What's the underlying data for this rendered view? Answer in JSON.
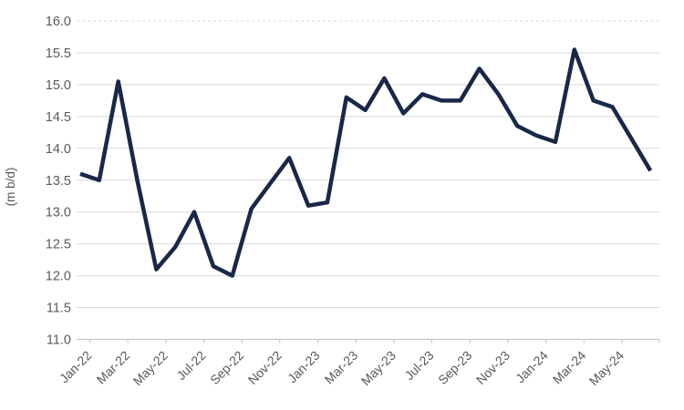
{
  "chart_data": {
    "type": "line",
    "title": "",
    "xlabel": "",
    "ylabel": "(m b/d)",
    "ylim": [
      11.0,
      16.0
    ],
    "ytick_step": 0.5,
    "ytick_labels": [
      "16.0",
      "15.5",
      "15.0",
      "14.5",
      "14.0",
      "13.5",
      "13.0",
      "12.5",
      "12.0",
      "11.5",
      "11.0"
    ],
    "x_tick_labels": [
      "Jan-22",
      "Mar-22",
      "May-22",
      "Jul-22",
      "Sep-22",
      "Nov-22",
      "Jan-23",
      "Mar-23",
      "May-23",
      "Jul-23",
      "Sep-23",
      "Nov-23",
      "Jan-24",
      "Mar-24",
      "May-24"
    ],
    "categories": [
      "Jan-22",
      "Feb-22",
      "Mar-22",
      "Apr-22",
      "May-22",
      "Jun-22",
      "Jul-22",
      "Aug-22",
      "Sep-22",
      "Oct-22",
      "Nov-22",
      "Dec-22",
      "Jan-23",
      "Feb-23",
      "Mar-23",
      "Apr-23",
      "May-23",
      "Jun-23",
      "Jul-23",
      "Aug-23",
      "Sep-23",
      "Oct-23",
      "Nov-23",
      "Dec-23",
      "Jan-24",
      "Feb-24",
      "Mar-24",
      "Apr-24",
      "May-24",
      "Jun-24",
      "Jul-24"
    ],
    "values": [
      13.6,
      13.5,
      15.05,
      13.5,
      12.1,
      12.45,
      13.0,
      12.15,
      12.0,
      13.05,
      13.45,
      13.85,
      13.1,
      13.15,
      14.8,
      14.6,
      15.1,
      14.55,
      14.85,
      14.75,
      14.75,
      15.25,
      14.85,
      14.35,
      14.2,
      14.1,
      15.55,
      14.75,
      14.65,
      14.15,
      13.65
    ],
    "grid": true,
    "legend_position": "none",
    "top_gridline_style": "dashed",
    "colors": {
      "line": "#182848",
      "grid": "#d9d9d9",
      "axis": "#bfbfbf",
      "text": "#595959"
    }
  }
}
